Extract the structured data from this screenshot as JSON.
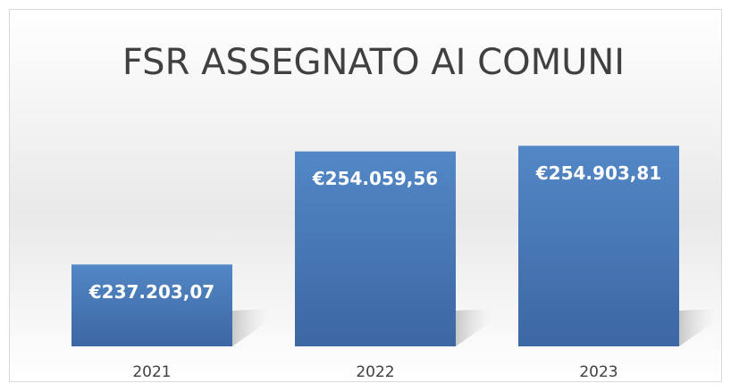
{
  "chart_data": {
    "type": "bar",
    "title": "FSR ASSEGNATO AI COMUNI",
    "categories": [
      "2021",
      "2022",
      "2023"
    ],
    "values": [
      237203.07,
      254059.56,
      254903.81
    ],
    "value_labels": [
      "€237.203,07",
      "€254.059,56",
      "€254.903,81"
    ],
    "color": "#4a7bb7",
    "ylim": [
      225000,
      260000
    ]
  }
}
